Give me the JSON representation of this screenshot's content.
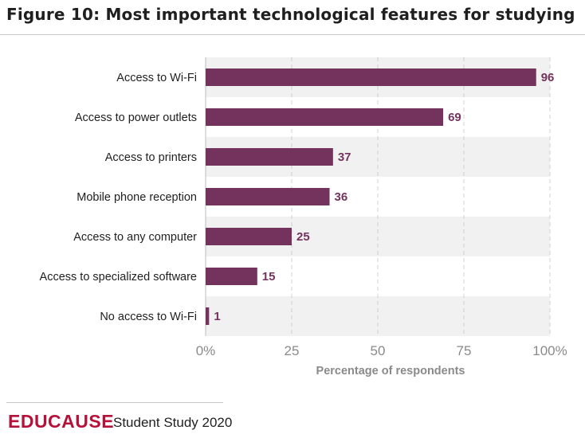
{
  "title": "Figure 10: Most important technological features for studying",
  "chart_data": {
    "type": "bar",
    "orientation": "horizontal",
    "categories": [
      "Access to Wi-Fi",
      "Access to power outlets",
      "Access to printers",
      "Mobile phone reception",
      "Access to any computer",
      "Access to specialized software",
      "No access to Wi-Fi"
    ],
    "values": [
      96,
      69,
      37,
      36,
      25,
      15,
      1
    ],
    "data_labels": [
      "96",
      "69",
      "37",
      "36",
      "25",
      "15",
      "1"
    ],
    "xlabel": "Percentage of respondents",
    "ylabel": "",
    "xlim": [
      0,
      100
    ],
    "x_ticks": [
      0,
      25,
      50,
      75,
      100
    ],
    "x_tick_labels": [
      "0%",
      "25",
      "50",
      "75",
      "100%"
    ],
    "grid": "vertical dashed",
    "bar_color": "#74335c",
    "band_color": "#f1f1f1"
  },
  "footer": {
    "brand": "EDUCAUSE",
    "study": "Student Study 2020",
    "brand_color": "#b5123a"
  }
}
